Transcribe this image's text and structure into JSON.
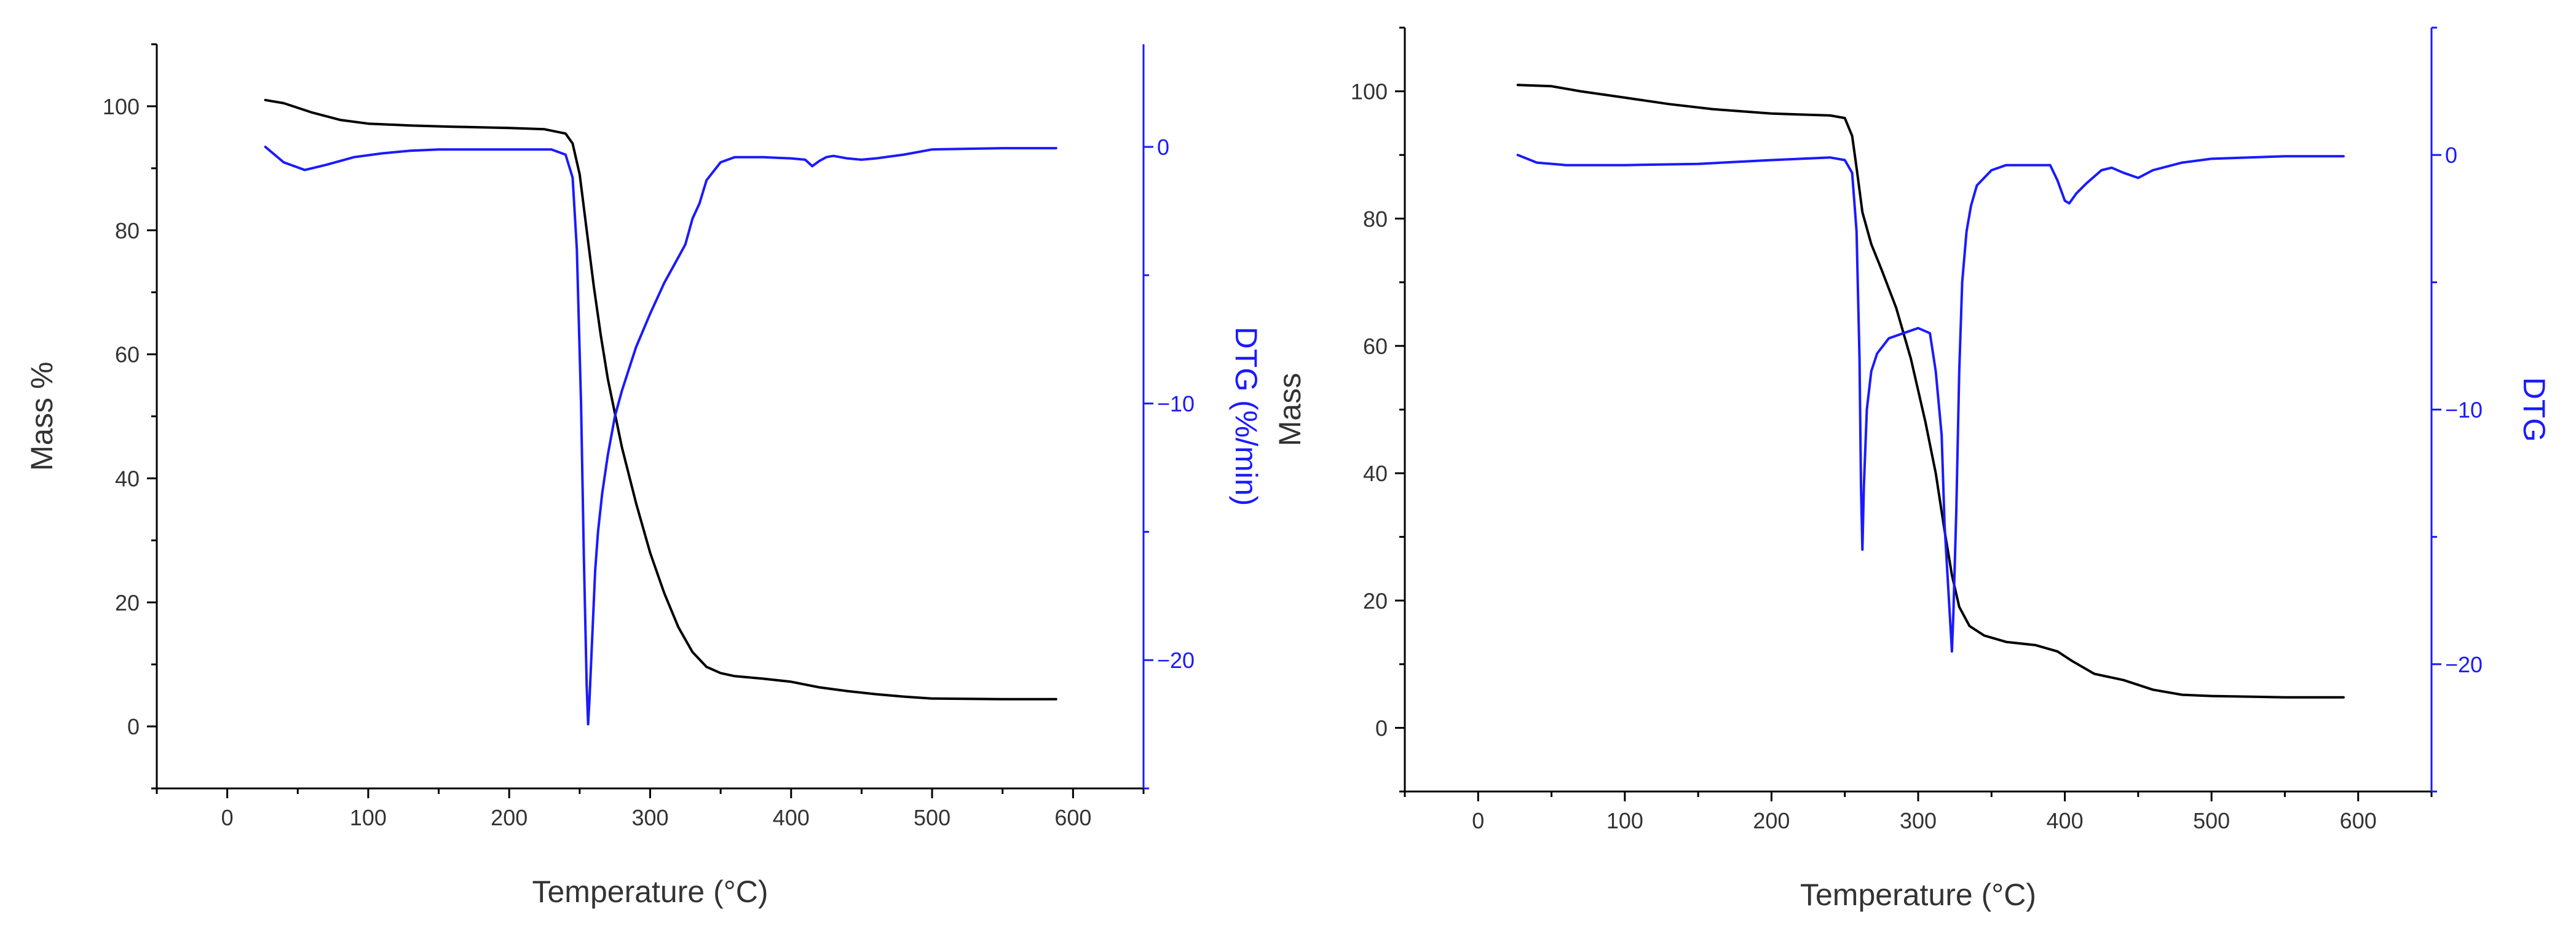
{
  "colors": {
    "mass_line": "#000000",
    "dtg_line": "#1a1aff",
    "left_axis": "#000000",
    "right_axis": "#1a1aff"
  },
  "chart_data": [
    {
      "type": "line",
      "xlabel": "Temperature (°C)",
      "xlim": [
        -50,
        650
      ],
      "xticks": [
        0,
        100,
        200,
        300,
        400,
        500,
        600
      ],
      "ylabel_left": "Mass %",
      "ylim_left": [
        -10,
        110
      ],
      "yticks_left": [
        0,
        20,
        40,
        60,
        80,
        100
      ],
      "ylabel_right": "DTG (%/min)",
      "ylim_right": [
        -25,
        4
      ],
      "yticks_right": [
        0,
        -10,
        -20
      ],
      "grid": false,
      "series": [
        {
          "axis": "left",
          "color": "#000000",
          "x": [
            27,
            40,
            60,
            80,
            100,
            130,
            160,
            200,
            225,
            240,
            245,
            250,
            255,
            260,
            265,
            270,
            280,
            290,
            300,
            310,
            320,
            330,
            340,
            350,
            360,
            380,
            400,
            420,
            440,
            460,
            480,
            500,
            550,
            588
          ],
          "y": [
            101,
            100.5,
            99,
            97.8,
            97.2,
            96.9,
            96.7,
            96.5,
            96.3,
            95.6,
            94,
            89,
            80,
            71,
            63,
            56,
            45,
            36,
            28,
            21.5,
            16,
            12,
            9.6,
            8.6,
            8.1,
            7.7,
            7.2,
            6.3,
            5.7,
            5.2,
            4.8,
            4.5,
            4.4,
            4.4
          ]
        },
        {
          "axis": "right",
          "color": "#1a1aff",
          "x": [
            27,
            40,
            55,
            70,
            90,
            110,
            130,
            150,
            170,
            200,
            230,
            240,
            245,
            248,
            251,
            253,
            255,
            256,
            257,
            259,
            261,
            263,
            266,
            270,
            275,
            280,
            290,
            300,
            310,
            320,
            325,
            330,
            335,
            340,
            350,
            360,
            380,
            400,
            410,
            415,
            420,
            425,
            430,
            440,
            450,
            460,
            480,
            500,
            550,
            588
          ],
          "y": [
            0,
            -0.6,
            -0.9,
            -0.7,
            -0.4,
            -0.25,
            -0.15,
            -0.1,
            -0.1,
            -0.1,
            -0.1,
            -0.3,
            -1.2,
            -4,
            -10,
            -16,
            -21,
            -22.5,
            -21.5,
            -19,
            -16.5,
            -15,
            -13.5,
            -12,
            -10.5,
            -9.5,
            -7.8,
            -6.5,
            -5.3,
            -4.3,
            -3.8,
            -2.8,
            -2.2,
            -1.3,
            -0.6,
            -0.4,
            -0.4,
            -0.45,
            -0.5,
            -0.75,
            -0.55,
            -0.4,
            -0.35,
            -0.45,
            -0.5,
            -0.45,
            -0.3,
            -0.1,
            -0.05,
            -0.05
          ]
        }
      ]
    },
    {
      "type": "line",
      "xlabel": "Temperature (°C)",
      "xlim": [
        -50,
        650
      ],
      "xticks": [
        0,
        100,
        200,
        300,
        400,
        500,
        600
      ],
      "ylabel_left": "Mass",
      "ylim_left": [
        -10,
        110
      ],
      "yticks_left": [
        0,
        20,
        40,
        60,
        80,
        100
      ],
      "ylabel_right": "DTG",
      "ylim_right": [
        -25,
        5
      ],
      "yticks_right": [
        0,
        -10,
        -20
      ],
      "grid": false,
      "series": [
        {
          "axis": "left",
          "color": "#000000",
          "x": [
            27,
            50,
            70,
            100,
            130,
            160,
            200,
            240,
            250,
            255,
            258,
            262,
            268,
            275,
            285,
            295,
            305,
            312,
            318,
            323,
            328,
            335,
            345,
            360,
            380,
            395,
            405,
            420,
            440,
            460,
            480,
            500,
            550,
            590
          ],
          "y": [
            101,
            100.8,
            100,
            99,
            98,
            97.2,
            96.5,
            96.2,
            95.8,
            93,
            88,
            81,
            76,
            72,
            66,
            58,
            48,
            40,
            31,
            24,
            19,
            16,
            14.5,
            13.5,
            13,
            12,
            10.5,
            8.5,
            7.5,
            6,
            5.2,
            5,
            4.8,
            4.8
          ]
        },
        {
          "axis": "right",
          "color": "#1a1aff",
          "x": [
            27,
            40,
            60,
            100,
            150,
            200,
            240,
            250,
            255,
            258,
            260,
            261,
            262,
            263,
            265,
            268,
            272,
            280,
            290,
            300,
            308,
            312,
            316,
            318,
            320,
            322,
            323,
            324,
            326,
            328,
            330,
            333,
            336,
            340,
            350,
            360,
            370,
            390,
            395,
            400,
            403,
            408,
            415,
            425,
            432,
            440,
            450,
            460,
            480,
            500,
            550,
            590
          ],
          "y": [
            0,
            -0.3,
            -0.4,
            -0.4,
            -0.35,
            -0.2,
            -0.1,
            -0.2,
            -0.7,
            -3,
            -8,
            -13,
            -15.5,
            -13,
            -10,
            -8.5,
            -7.8,
            -7.2,
            -7,
            -6.8,
            -7,
            -8.5,
            -11,
            -14.5,
            -16.5,
            -18.5,
            -19.5,
            -18,
            -14,
            -8.5,
            -5,
            -3,
            -2,
            -1.2,
            -0.6,
            -0.4,
            -0.4,
            -0.4,
            -1,
            -1.8,
            -1.9,
            -1.5,
            -1.1,
            -0.6,
            -0.5,
            -0.7,
            -0.9,
            -0.6,
            -0.3,
            -0.15,
            -0.05,
            -0.05
          ]
        }
      ]
    }
  ]
}
